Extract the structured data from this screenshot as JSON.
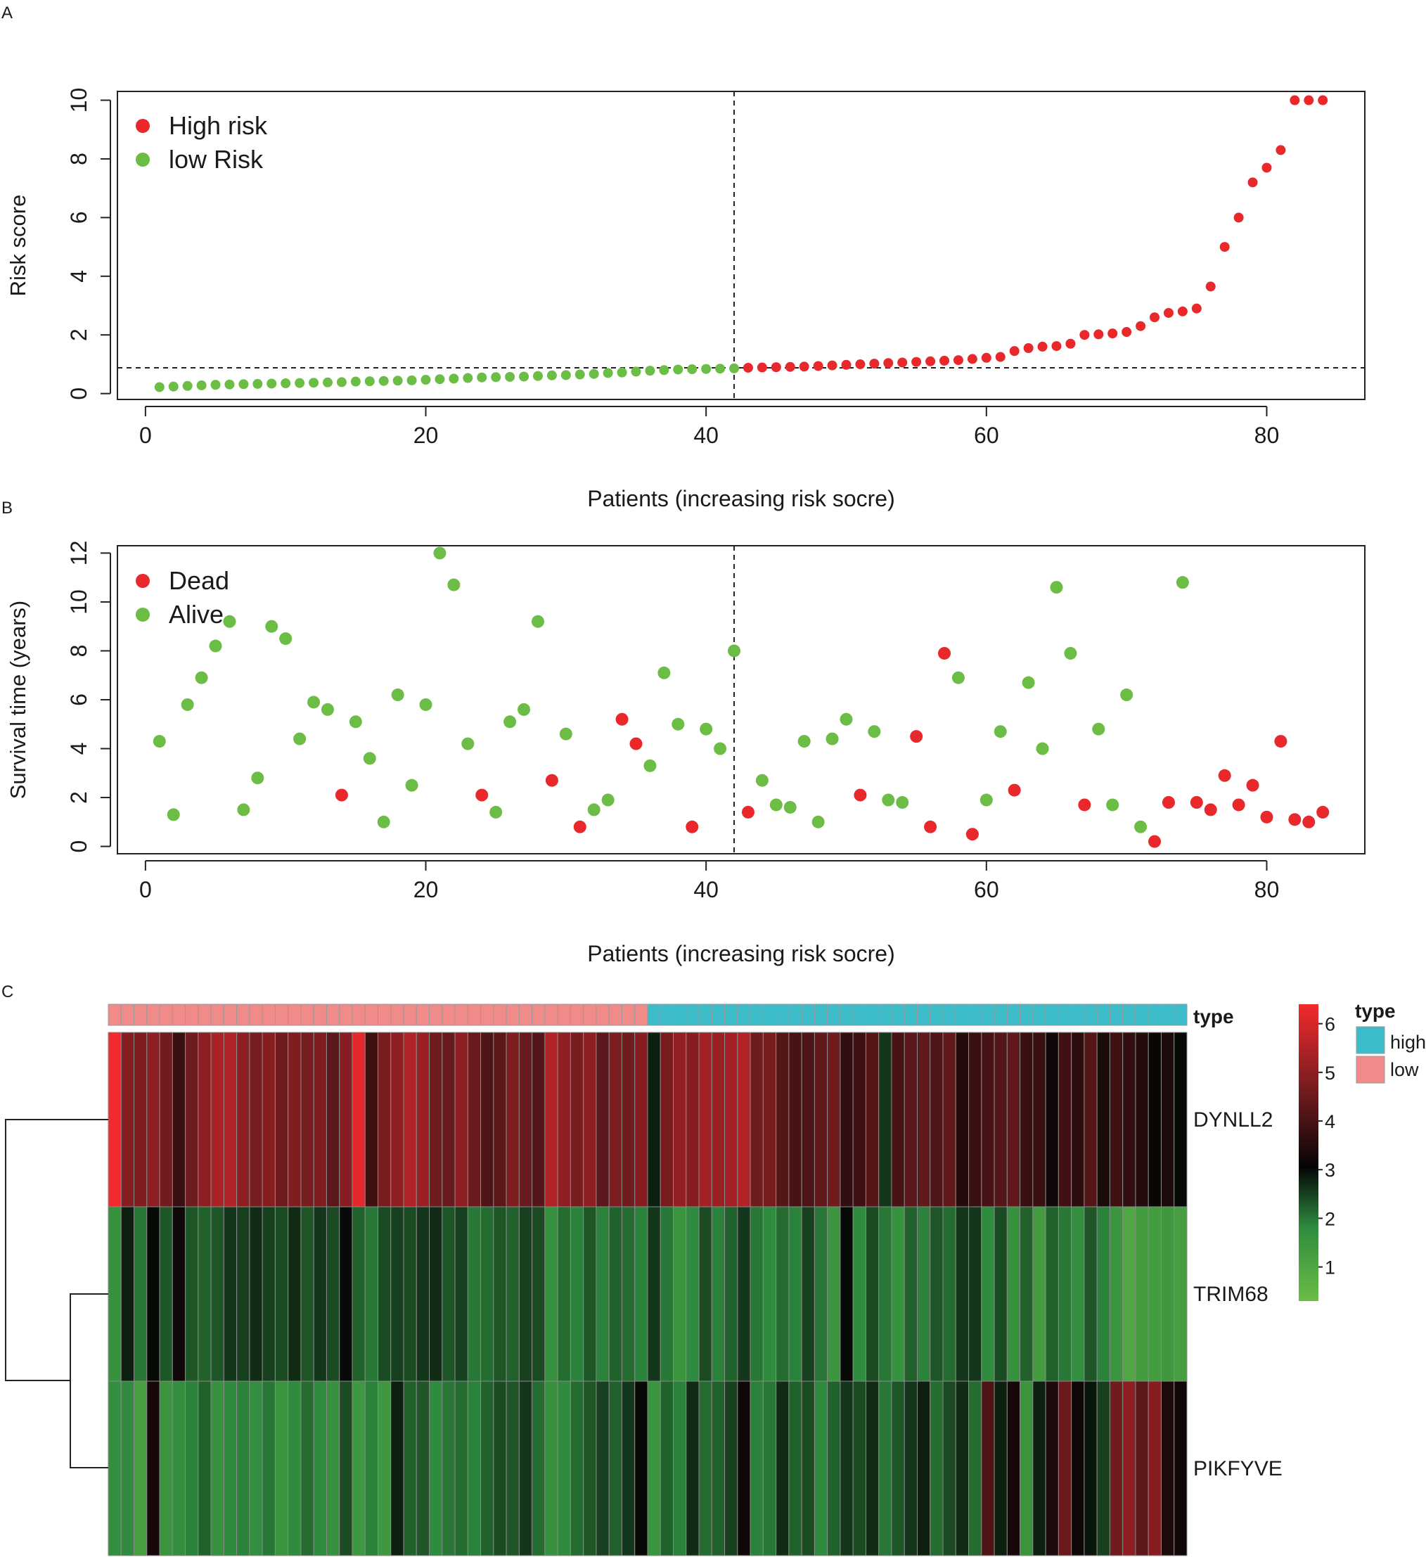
{
  "panels": {
    "a": "A",
    "b": "B",
    "c": "C"
  },
  "colors": {
    "high": "#e8282b",
    "low": "#6cbd45",
    "type_high": "#3cbcc8",
    "type_low": "#f08b89"
  },
  "chart_data": [
    {
      "type": "scatter",
      "panel": "A",
      "ylabel": "Risk score",
      "xlabel": "Patients (increasing risk socre)",
      "xlim": [
        -2,
        87
      ],
      "ylim": [
        -0.2,
        10.3
      ],
      "xticks": [
        "0",
        "20",
        "40",
        "60",
        "80"
      ],
      "yticks": [
        "0",
        "2",
        "4",
        "6",
        "8",
        "10"
      ],
      "cutoff": {
        "x": 42,
        "y": 0.88
      },
      "legend": {
        "position": "top-left",
        "entries": [
          "High risk",
          "low Risk"
        ]
      },
      "series": [
        {
          "name": "low Risk",
          "x": [
            1,
            2,
            3,
            4,
            5,
            6,
            7,
            8,
            9,
            10,
            11,
            12,
            13,
            14,
            15,
            16,
            17,
            18,
            19,
            20,
            21,
            22,
            23,
            24,
            25,
            26,
            27,
            28,
            29,
            30,
            31,
            32,
            33,
            34,
            35,
            36,
            37,
            38,
            39,
            40,
            41,
            42
          ],
          "values": [
            0.22,
            0.24,
            0.26,
            0.28,
            0.3,
            0.31,
            0.32,
            0.33,
            0.34,
            0.35,
            0.36,
            0.37,
            0.38,
            0.39,
            0.41,
            0.42,
            0.43,
            0.44,
            0.45,
            0.47,
            0.49,
            0.51,
            0.53,
            0.55,
            0.56,
            0.57,
            0.58,
            0.6,
            0.62,
            0.63,
            0.65,
            0.67,
            0.7,
            0.72,
            0.75,
            0.78,
            0.8,
            0.82,
            0.83,
            0.84,
            0.85,
            0.86
          ]
        },
        {
          "name": "High risk",
          "x": [
            43,
            44,
            45,
            46,
            47,
            48,
            49,
            50,
            51,
            52,
            53,
            54,
            55,
            56,
            57,
            58,
            59,
            60,
            61,
            62,
            63,
            64,
            65,
            66,
            67,
            68,
            69,
            70,
            71,
            72,
            73,
            74,
            75,
            76,
            77,
            78,
            79,
            80,
            81,
            82,
            83,
            84
          ],
          "values": [
            0.88,
            0.89,
            0.9,
            0.91,
            0.92,
            0.94,
            0.96,
            0.98,
            1.0,
            1.02,
            1.04,
            1.06,
            1.08,
            1.1,
            1.12,
            1.14,
            1.18,
            1.22,
            1.25,
            1.45,
            1.55,
            1.6,
            1.62,
            1.7,
            2.0,
            2.02,
            2.05,
            2.1,
            2.3,
            2.6,
            2.75,
            2.8,
            2.9,
            3.65,
            5.0,
            6.0,
            7.2,
            7.7,
            8.3,
            10.0,
            10.0,
            10.0
          ]
        }
      ]
    },
    {
      "type": "scatter",
      "panel": "B",
      "ylabel": "Survival time (years)",
      "xlabel": "Patients (increasing risk socre)",
      "xlim": [
        -2,
        87
      ],
      "ylim": [
        -0.3,
        12.3
      ],
      "xticks": [
        "0",
        "20",
        "40",
        "60",
        "80"
      ],
      "yticks": [
        "0",
        "2",
        "4",
        "6",
        "8",
        "10",
        "12"
      ],
      "cutoff": {
        "x": 42
      },
      "legend": {
        "position": "top-left",
        "entries": [
          "Dead",
          "Alive"
        ]
      },
      "series": [
        {
          "name": "Alive",
          "x": [
            1,
            2,
            3,
            4,
            5,
            6,
            7,
            8,
            9,
            10,
            11,
            12,
            13,
            15,
            16,
            17,
            18,
            19,
            20,
            21,
            22,
            23,
            25,
            26,
            27,
            28,
            30,
            32,
            33,
            36,
            37,
            38,
            40,
            41,
            42,
            44,
            45,
            46,
            47,
            48,
            49,
            50,
            52,
            53,
            54,
            58,
            60,
            61,
            63,
            64,
            65,
            66,
            68,
            69,
            70,
            71,
            74
          ],
          "values": [
            4.3,
            1.3,
            5.8,
            6.9,
            8.2,
            9.2,
            1.5,
            2.8,
            9.0,
            8.5,
            4.4,
            5.9,
            5.6,
            5.1,
            3.6,
            1.0,
            6.2,
            2.5,
            5.8,
            12.0,
            10.7,
            4.2,
            1.4,
            5.1,
            5.6,
            9.2,
            4.6,
            1.5,
            1.9,
            3.3,
            7.1,
            5.0,
            4.8,
            4.0,
            8.0,
            2.7,
            1.7,
            1.6,
            4.3,
            1.0,
            4.4,
            5.2,
            4.7,
            1.9,
            1.8,
            6.9,
            1.9,
            4.7,
            6.7,
            4.0,
            10.6,
            7.9,
            4.8,
            1.7,
            6.2,
            0.8,
            10.8
          ]
        },
        {
          "name": "Dead",
          "x": [
            14,
            24,
            29,
            31,
            34,
            35,
            39,
            43,
            51,
            55,
            56,
            57,
            59,
            62,
            67,
            72,
            73,
            75,
            76,
            77,
            78,
            79,
            80,
            81,
            82,
            83,
            84
          ],
          "values": [
            2.1,
            2.1,
            2.7,
            0.8,
            5.2,
            4.2,
            0.8,
            1.4,
            2.1,
            4.5,
            0.8,
            7.9,
            0.5,
            2.3,
            1.7,
            0.2,
            1.8,
            1.8,
            1.5,
            2.9,
            1.7,
            2.5,
            1.2,
            4.3,
            1.1,
            1.0,
            1.4
          ]
        }
      ]
    },
    {
      "type": "heatmap",
      "panel": "C",
      "rows": [
        "DYNLL2",
        "TRIM68",
        "PIKFYVE"
      ],
      "annotation_label": "type",
      "type_counts": {
        "low": 42,
        "high": 42
      },
      "colorbar": {
        "ticks": [
          "1",
          "2",
          "3",
          "4",
          "5",
          "6"
        ],
        "range": [
          0.3,
          6.4
        ]
      },
      "legend": {
        "title": "type",
        "entries": [
          "high",
          "low"
        ]
      },
      "values": [
        [
          6.4,
          4.9,
          4.8,
          5.0,
          4.6,
          3.8,
          4.6,
          5.0,
          5.4,
          5.5,
          5.0,
          4.7,
          4.9,
          4.6,
          4.8,
          4.7,
          4.8,
          4.3,
          4.9,
          6.2,
          3.9,
          4.7,
          5.0,
          5.5,
          5.2,
          4.6,
          4.5,
          5.0,
          4.5,
          4.1,
          4.3,
          4.8,
          4.5,
          4.2,
          5.5,
          5.0,
          4.7,
          5.0,
          4.3,
          4.8,
          4.6,
          4.9,
          2.8,
          4.7,
          5.1,
          4.9,
          5.3,
          5.2,
          5.3,
          5.5,
          4.6,
          4.7,
          4.2,
          4.0,
          4.1,
          4.4,
          4.6,
          3.7,
          3.9,
          4.2,
          2.6,
          4.0,
          4.3,
          4.4,
          4.1,
          4.4,
          3.5,
          3.8,
          4.0,
          4.2,
          4.4,
          3.8,
          3.8,
          3.2,
          3.9,
          3.6,
          4.2,
          3.4,
          3.9,
          3.7,
          3.5,
          3.1,
          3.4,
          3.0
        ],
        [
          1.6,
          2.8,
          2.0,
          3.0,
          2.3,
          3.2,
          2.3,
          2.2,
          2.3,
          2.6,
          2.5,
          2.7,
          2.5,
          2.4,
          2.7,
          2.3,
          2.6,
          2.4,
          3.0,
          2.2,
          2.0,
          2.4,
          2.5,
          2.4,
          2.6,
          2.7,
          2.3,
          2.5,
          2.0,
          2.1,
          2.3,
          2.2,
          2.5,
          2.4,
          1.6,
          2.1,
          1.9,
          2.3,
          1.9,
          2.2,
          2.1,
          1.9,
          2.6,
          2.0,
          1.5,
          1.8,
          2.4,
          1.9,
          2.2,
          2.6,
          2.0,
          1.8,
          2.1,
          1.9,
          2.5,
          2.0,
          1.5,
          3.0,
          1.8,
          2.4,
          2.0,
          1.6,
          2.2,
          1.9,
          2.3,
          2.1,
          2.6,
          2.6,
          1.8,
          2.4,
          1.6,
          2.2,
          1.3,
          2.2,
          2.0,
          1.7,
          2.3,
          1.9,
          1.5,
          1.0,
          1.3,
          1.3,
          1.4,
          1.2
        ],
        [
          1.7,
          1.8,
          1.2,
          3.3,
          1.5,
          1.7,
          1.9,
          2.2,
          1.6,
          1.8,
          1.9,
          1.7,
          2.0,
          1.5,
          1.8,
          2.1,
          1.8,
          1.6,
          2.4,
          1.4,
          1.9,
          1.4,
          2.8,
          2.2,
          2.3,
          1.8,
          2.0,
          2.1,
          1.9,
          2.2,
          2.4,
          2.3,
          2.6,
          2.1,
          1.6,
          1.8,
          2.1,
          2.3,
          2.5,
          2.2,
          2.6,
          3.0,
          1.5,
          2.2,
          1.9,
          2.7,
          2.1,
          2.2,
          2.5,
          3.2,
          1.9,
          2.0,
          2.7,
          2.2,
          2.4,
          1.8,
          2.2,
          2.6,
          2.4,
          2.7,
          2.0,
          2.3,
          2.6,
          2.8,
          2.1,
          2.4,
          2.7,
          2.1,
          4.1,
          2.8,
          3.3,
          1.5,
          2.8,
          3.4,
          4.5,
          3.2,
          2.9,
          2.5,
          4.6,
          5.0,
          4.3,
          4.9,
          3.4,
          3.2
        ]
      ]
    }
  ]
}
